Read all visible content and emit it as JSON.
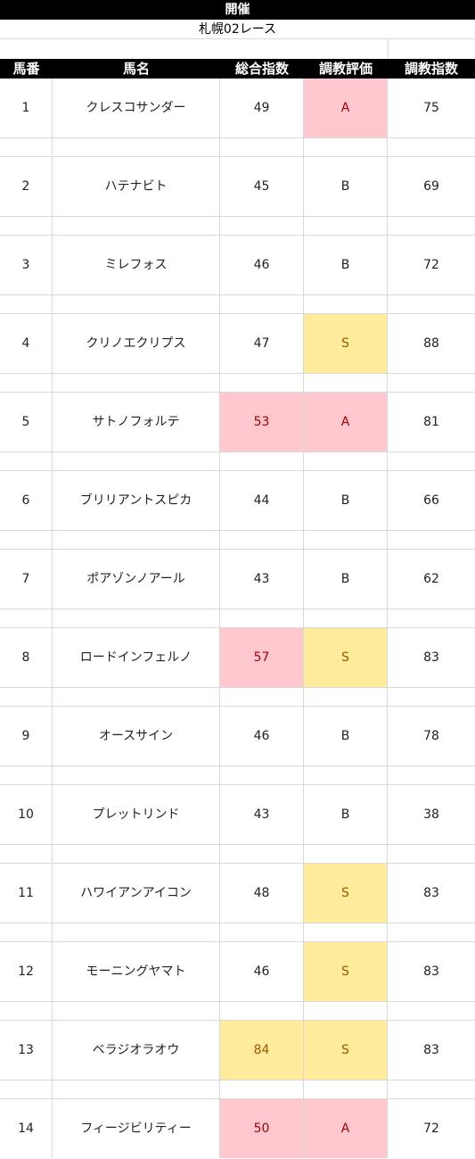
{
  "title": "開催",
  "race_name": "札幌02レース",
  "columns": [
    "馬番",
    "馬名",
    "総合指数",
    "調教評価",
    "調教指数"
  ],
  "colors": {
    "pink_fill": "#ffc7ce",
    "pink_text": "#9c0006",
    "yellow_fill": "#ffeb9c",
    "yellow_text": "#9c5700"
  },
  "rows": [
    {
      "num": "1",
      "name": "クレスコサンダー",
      "sogo": "49",
      "sogo_hl": "",
      "eval": "A",
      "eval_hl": "pink",
      "chokyo": "75"
    },
    {
      "num": "2",
      "name": "ハテナビト",
      "sogo": "45",
      "sogo_hl": "",
      "eval": "B",
      "eval_hl": "",
      "chokyo": "69"
    },
    {
      "num": "3",
      "name": "ミレフォス",
      "sogo": "46",
      "sogo_hl": "",
      "eval": "B",
      "eval_hl": "",
      "chokyo": "72"
    },
    {
      "num": "4",
      "name": "クリノエクリプス",
      "sogo": "47",
      "sogo_hl": "",
      "eval": "S",
      "eval_hl": "yellow",
      "chokyo": "88"
    },
    {
      "num": "5",
      "name": "サトノフォルテ",
      "sogo": "53",
      "sogo_hl": "pink",
      "eval": "A",
      "eval_hl": "pink",
      "chokyo": "81"
    },
    {
      "num": "6",
      "name": "ブリリアントスピカ",
      "sogo": "44",
      "sogo_hl": "",
      "eval": "B",
      "eval_hl": "",
      "chokyo": "66"
    },
    {
      "num": "7",
      "name": "ポアゾンノアール",
      "sogo": "43",
      "sogo_hl": "",
      "eval": "B",
      "eval_hl": "",
      "chokyo": "62"
    },
    {
      "num": "8",
      "name": "ロードインフェルノ",
      "sogo": "57",
      "sogo_hl": "pink",
      "eval": "S",
      "eval_hl": "yellow",
      "chokyo": "83"
    },
    {
      "num": "9",
      "name": "オースサイン",
      "sogo": "46",
      "sogo_hl": "",
      "eval": "B",
      "eval_hl": "",
      "chokyo": "78"
    },
    {
      "num": "10",
      "name": "プレットリンド",
      "sogo": "43",
      "sogo_hl": "",
      "eval": "B",
      "eval_hl": "",
      "chokyo": "38"
    },
    {
      "num": "11",
      "name": "ハワイアンアイコン",
      "sogo": "48",
      "sogo_hl": "",
      "eval": "S",
      "eval_hl": "yellow",
      "chokyo": "83"
    },
    {
      "num": "12",
      "name": "モーニングヤマト",
      "sogo": "46",
      "sogo_hl": "",
      "eval": "S",
      "eval_hl": "yellow",
      "chokyo": "83"
    },
    {
      "num": "13",
      "name": "ベラジオラオウ",
      "sogo": "84",
      "sogo_hl": "yellow",
      "eval": "S",
      "eval_hl": "yellow",
      "chokyo": "83"
    },
    {
      "num": "14",
      "name": "フィージビリティー",
      "sogo": "50",
      "sogo_hl": "pink",
      "eval": "A",
      "eval_hl": "pink",
      "chokyo": "72"
    }
  ]
}
